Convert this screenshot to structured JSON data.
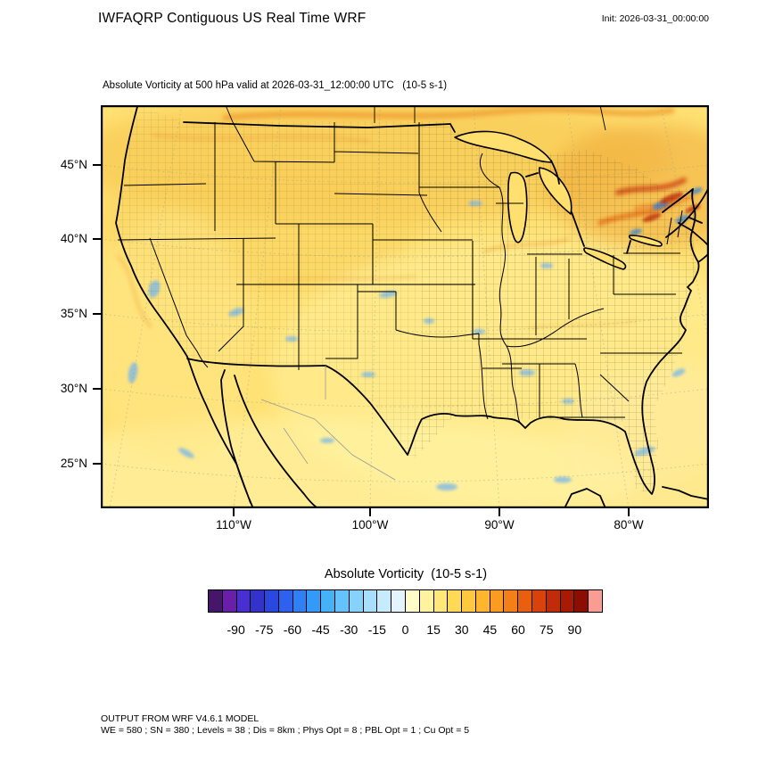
{
  "header": {
    "title": "IWFAQRP Contiguous US Real Time WRF",
    "init_label": "Init: 2026-03-31_00:00:00"
  },
  "map": {
    "subtitle": "Absolute Vorticity at 500 hPa valid at 2026-03-31_12:00:00 UTC   (10-5 s-1)",
    "y_tick_labels": [
      "45°N",
      "40°N",
      "35°N",
      "30°N",
      "25°N"
    ],
    "x_tick_labels": [
      "110°W",
      "100°W",
      "90°W",
      "80°W"
    ]
  },
  "colorbar": {
    "title": "Absolute Vorticity  (10-5 s-1)",
    "vmin": -105,
    "vmax": 105,
    "tick_values": [
      -90,
      -75,
      -60,
      -45,
      -30,
      -15,
      0,
      15,
      30,
      45,
      60,
      75,
      90
    ],
    "colors": [
      "#46166B",
      "#6A1FA8",
      "#4A2FD0",
      "#3333CC",
      "#2A47E0",
      "#2E62EE",
      "#2F7FF5",
      "#339AF7",
      "#45B2F8",
      "#63C3FA",
      "#86D2FB",
      "#A7DFFC",
      "#C6EBFD",
      "#E3F4FE",
      "#FFFCC9",
      "#FFF3A0",
      "#FFE878",
      "#FFDA55",
      "#FFC93E",
      "#FFB52E",
      "#FB9C22",
      "#F47F18",
      "#E95F10",
      "#D9420B",
      "#C22B07",
      "#A81A04",
      "#8C0D02",
      "#F89C94"
    ]
  },
  "footer": {
    "line1": "OUTPUT FROM WRF V4.6.1 MODEL",
    "line2": "WE = 580 ; SN = 380 ; Levels = 38 ; Dis = 8km ; Phys Opt = 8 ; PBL Opt = 1 ; Cu Opt = 5"
  },
  "chart_data": {
    "type": "heatmap",
    "title": "Absolute Vorticity at 500 hPa valid at 2026-03-31_12:00:00 UTC",
    "units": "10-5 s-1",
    "model": "WRF V4.6.1",
    "model_config": "WE = 580 ; SN = 380 ; Levels = 38 ; Dis = 8km ; Phys Opt = 8 ; PBL Opt = 1 ; Cu Opt = 5",
    "init_time": "2026-03-31_00:00:00",
    "valid_time": "2026-03-31_12:00:00 UTC",
    "region": "Contiguous US",
    "x_ticks": [
      "110°W",
      "100°W",
      "90°W",
      "80°W"
    ],
    "y_ticks": [
      "45°N",
      "40°N",
      "35°N",
      "30°N",
      "25°N"
    ],
    "colorbar_ticks": [
      -90,
      -75,
      -60,
      -45,
      -30,
      -15,
      0,
      15,
      30,
      45,
      60,
      75,
      90
    ],
    "colorbar_range": [
      -105,
      105
    ],
    "colorbar_step": 7.5,
    "legend_position": "bottom",
    "field_summary": "Background values mostly 5 to 25 (yellow to gold) over CONUS; elongated maxima 45 to 90 (orange/red) over New England, the Canadian Maritimes and along the northern border; scattered small negative patches -15 to -45 (light blue) over the West, Plains, Gulf coast, Florida and offshore Pacific"
  }
}
